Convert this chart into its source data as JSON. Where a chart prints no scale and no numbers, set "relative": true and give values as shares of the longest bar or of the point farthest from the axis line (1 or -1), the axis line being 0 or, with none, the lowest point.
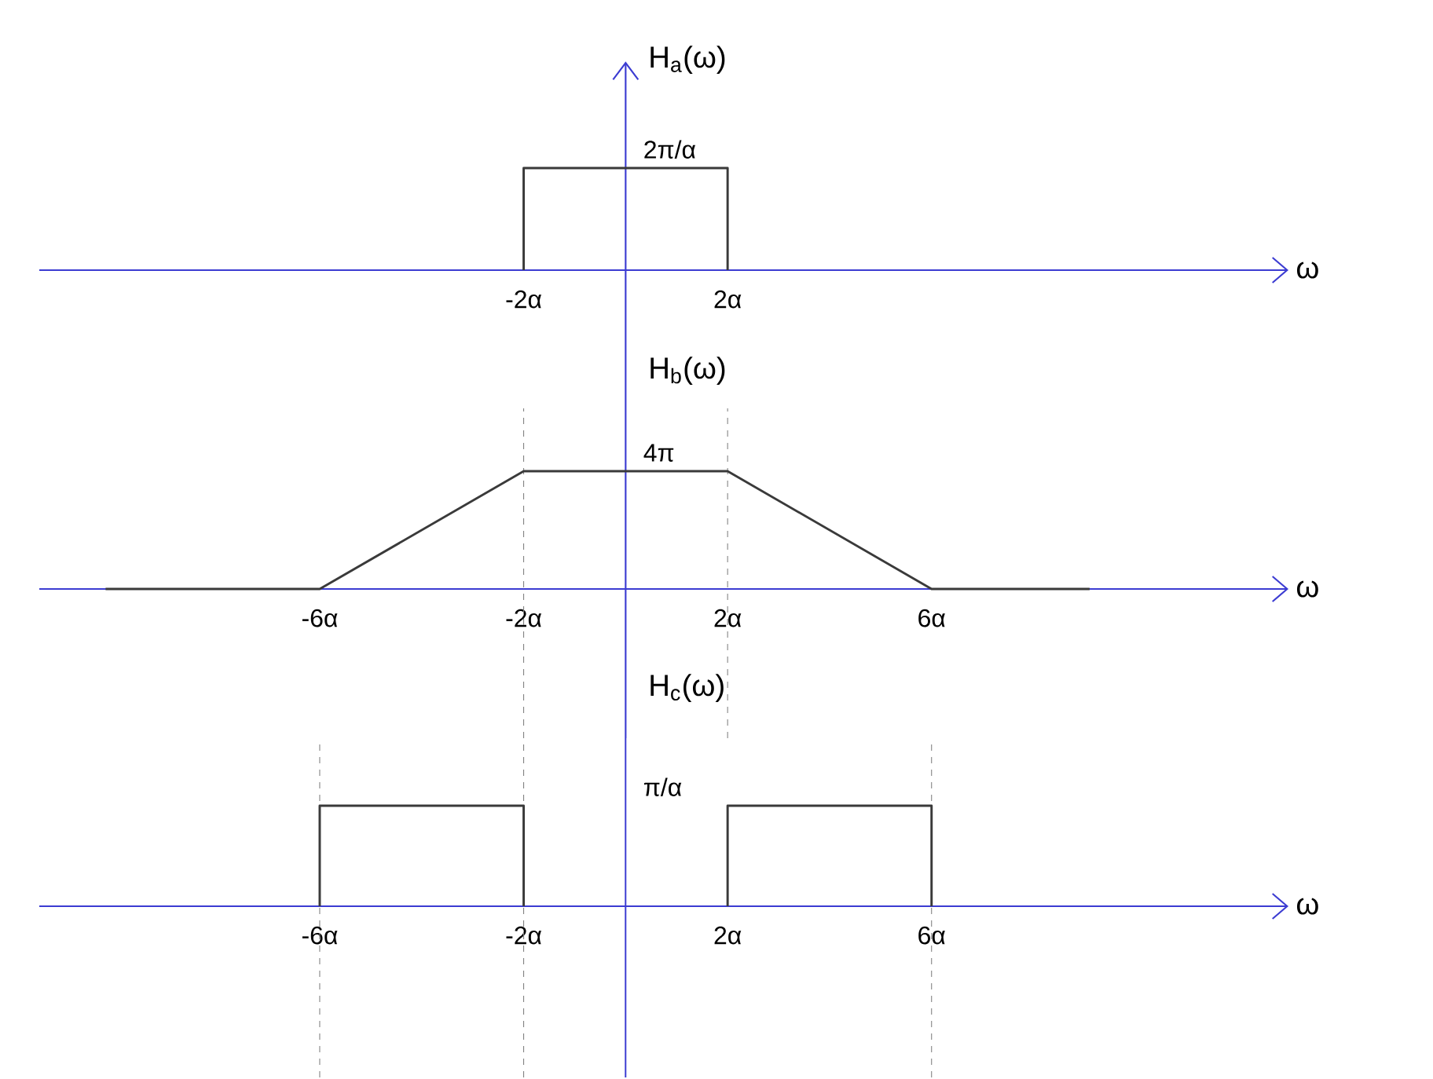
{
  "chart_data": [
    {
      "type": "line",
      "relative": true,
      "ylabel": "H$_{a}$(ω)",
      "xlabel": "ω",
      "xlim": [
        -11.5,
        13
      ],
      "xticks": [
        {
          "value": -2,
          "label": "-2α"
        },
        {
          "value": 2,
          "label": "2α"
        }
      ],
      "series": [
        {
          "color": "#3a3a3a",
          "x": [
            -2,
            -2,
            2,
            2
          ],
          "values": [
            0,
            1,
            1,
            0
          ]
        }
      ],
      "ref_lines": [
        {
          "axis": "x",
          "value": 0,
          "color": "#3c3cd2"
        }
      ],
      "annotations": [
        "2π/α"
      ]
    },
    {
      "type": "line",
      "relative": true,
      "ylabel": "H$_{b}$(ω)",
      "xlabel": "ω",
      "xlim": [
        -11.5,
        13
      ],
      "xticks": [
        {
          "value": -6,
          "label": "-6α"
        },
        {
          "value": -2,
          "label": "-2α"
        },
        {
          "value": 2,
          "label": "2α"
        },
        {
          "value": 6,
          "label": "6α"
        }
      ],
      "series": [
        {
          "color": "#3a3a3a",
          "x": [
            -10.2,
            -6,
            -2,
            2,
            6,
            9.1
          ],
          "values": [
            0,
            0,
            1,
            1,
            0,
            0
          ]
        }
      ],
      "ref_lines": [
        {
          "axis": "x",
          "value": 0,
          "color": "#3c3cd2"
        },
        {
          "axis": "x",
          "value": -2,
          "line_style": "dashed"
        },
        {
          "axis": "x",
          "value": 2,
          "line_style": "dashed"
        }
      ],
      "annotations": [
        "4π"
      ]
    },
    {
      "type": "line",
      "relative": true,
      "ylabel": "H$_{c}$(ω)",
      "xlabel": "ω",
      "xlim": [
        -11.5,
        13
      ],
      "xticks": [
        {
          "value": -6,
          "label": "-6α"
        },
        {
          "value": -2,
          "label": "-2α"
        },
        {
          "value": 2,
          "label": "2α"
        },
        {
          "value": 6,
          "label": "6α"
        }
      ],
      "series": [
        {
          "color": "#3a3a3a",
          "x": [
            -6,
            -6,
            -2,
            -2,
            0,
            2,
            2,
            6,
            6
          ],
          "values": [
            0,
            1,
            1,
            0,
            null,
            0,
            1,
            1,
            0
          ]
        }
      ],
      "ref_lines": [
        {
          "axis": "x",
          "value": 0,
          "color": "#3c3cd2"
        },
        {
          "axis": "x",
          "value": -6,
          "line_style": "dashed"
        },
        {
          "axis": "x",
          "value": -2,
          "line_style": "dashed"
        },
        {
          "axis": "x",
          "value": 6,
          "line_style": "dashed"
        }
      ],
      "annotations": [
        "π/α"
      ]
    }
  ]
}
